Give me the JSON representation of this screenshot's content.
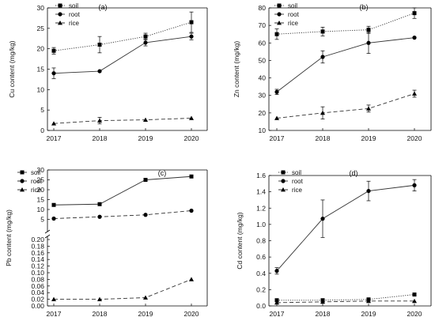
{
  "chart_data": [
    {
      "type": "line",
      "panel_label": "(a)",
      "ylabel": "Cu content (mg/kg)",
      "x": [
        2017,
        2018,
        2019,
        2020
      ],
      "x_ticks": [
        "2017",
        "2018",
        "2019",
        "2020"
      ],
      "ylim": [
        0,
        30
      ],
      "y_ticks": [
        0,
        5,
        10,
        15,
        20,
        25,
        30
      ],
      "y_tick_labels": [
        "0",
        "5",
        "10",
        "15",
        "20",
        "25",
        "30"
      ],
      "legend_position": "top-left",
      "series": [
        {
          "name": "soil",
          "marker": "square",
          "line_style": "dotted",
          "values": [
            19.5,
            21.0,
            23.0,
            26.5
          ],
          "errors": [
            0.8,
            2.0,
            0.8,
            2.5
          ]
        },
        {
          "name": "root",
          "marker": "circle",
          "line_style": "solid",
          "values": [
            14.0,
            14.5,
            21.5,
            23.0
          ],
          "errors": [
            1.3,
            0.0,
            0.8,
            0.8
          ]
        },
        {
          "name": "rice",
          "marker": "triangle",
          "line_style": "dashed",
          "values": [
            1.7,
            2.4,
            2.6,
            3.0
          ],
          "errors": [
            0.0,
            0.8,
            0.0,
            0.0
          ]
        }
      ]
    },
    {
      "type": "line",
      "panel_label": "(b)",
      "ylabel": "Zn content (mg/kg)",
      "x": [
        2017,
        2018,
        2019,
        2020
      ],
      "x_ticks": [
        "2017",
        "2018",
        "2019",
        "2020"
      ],
      "ylim": [
        10,
        80
      ],
      "y_ticks": [
        10,
        20,
        30,
        40,
        50,
        60,
        70,
        80
      ],
      "y_tick_labels": [
        "10",
        "20",
        "30",
        "40",
        "50",
        "60",
        "70",
        "80"
      ],
      "legend_position": "top-left",
      "series": [
        {
          "name": "soil",
          "marker": "square",
          "line_style": "dotted",
          "values": [
            65.0,
            66.5,
            67.5,
            77.0
          ],
          "errors": [
            3.0,
            2.5,
            2.0,
            3.0
          ]
        },
        {
          "name": "root",
          "marker": "circle",
          "line_style": "solid",
          "values": [
            32.0,
            52.0,
            60.0,
            63.0
          ],
          "errors": [
            1.5,
            3.5,
            6.0,
            0.0
          ]
        },
        {
          "name": "rice",
          "marker": "triangle",
          "line_style": "dashed",
          "values": [
            17.0,
            20.0,
            22.5,
            31.0
          ],
          "errors": [
            0.0,
            3.5,
            2.0,
            2.0
          ]
        }
      ]
    },
    {
      "type": "line",
      "panel_label": "(c)",
      "ylabel": "Pb content (mg/kg)",
      "x": [
        2017,
        2018,
        2019,
        2020
      ],
      "x_ticks": [
        "2017",
        "2018",
        "2019",
        "2020"
      ],
      "broken_axis": true,
      "y_segments": [
        {
          "ylim": [
            0,
            0.2
          ],
          "y_ticks": [
            0,
            0.02,
            0.04,
            0.06,
            0.08,
            0.1,
            0.12,
            0.14,
            0.16,
            0.18,
            0.2
          ],
          "y_tick_labels": [
            "0.00",
            "0.02",
            "0.04",
            "0.06",
            "0.08",
            "0.10",
            "0.12",
            "0.14",
            "0.16",
            "0.18",
            "0.20"
          ]
        },
        {
          "ylim": [
            0,
            30
          ],
          "y_ticks": [
            5,
            10,
            15,
            20,
            25,
            30
          ],
          "y_tick_labels": [
            "5",
            "10",
            "15",
            "20",
            "25",
            "30"
          ]
        }
      ],
      "legend_position": "top-left",
      "series": [
        {
          "name": "soil",
          "marker": "square",
          "line_style": "solid",
          "values": [
            12.3,
            12.7,
            25.0,
            26.7
          ],
          "errors": [
            0.0,
            0.0,
            0.8,
            0.0
          ]
        },
        {
          "name": "root",
          "marker": "circle",
          "line_style": "dashed",
          "values": [
            5.4,
            6.3,
            7.3,
            9.4
          ],
          "errors": [
            0.0,
            0.0,
            0.0,
            0.0
          ]
        },
        {
          "name": "rice",
          "marker": "triangle",
          "line_style": "dashed",
          "values": [
            0.02,
            0.02,
            0.025,
            0.08
          ],
          "errors": [
            0.0,
            0.0,
            0.0,
            0.0
          ]
        }
      ]
    },
    {
      "type": "line",
      "panel_label": "(d)",
      "ylabel": "Cd content (mg/kg)",
      "x": [
        2017,
        2018,
        2019,
        2020
      ],
      "x_ticks": [
        "2017",
        "2018",
        "2019",
        "2020"
      ],
      "ylim": [
        0,
        1.6
      ],
      "y_ticks": [
        0,
        0.2,
        0.4,
        0.6,
        0.8,
        1.0,
        1.2,
        1.4,
        1.6
      ],
      "y_tick_labels": [
        "0.0",
        "0.2",
        "0.4",
        "0.6",
        "0.8",
        "1.0",
        "1.2",
        "1.4",
        "1.6"
      ],
      "legend_position": "top-left",
      "series": [
        {
          "name": "soil",
          "marker": "square",
          "line_style": "dotted",
          "values": [
            0.07,
            0.07,
            0.08,
            0.14
          ],
          "errors": [
            0.0,
            0.0,
            0.0,
            0.0
          ]
        },
        {
          "name": "root",
          "marker": "circle",
          "line_style": "solid",
          "values": [
            0.43,
            1.07,
            1.41,
            1.48
          ],
          "errors": [
            0.04,
            0.23,
            0.12,
            0.07
          ]
        },
        {
          "name": "rice",
          "marker": "triangle",
          "line_style": "dashed",
          "values": [
            0.04,
            0.05,
            0.06,
            0.06
          ],
          "errors": [
            0.0,
            0.0,
            0.0,
            0.0
          ]
        }
      ]
    }
  ]
}
